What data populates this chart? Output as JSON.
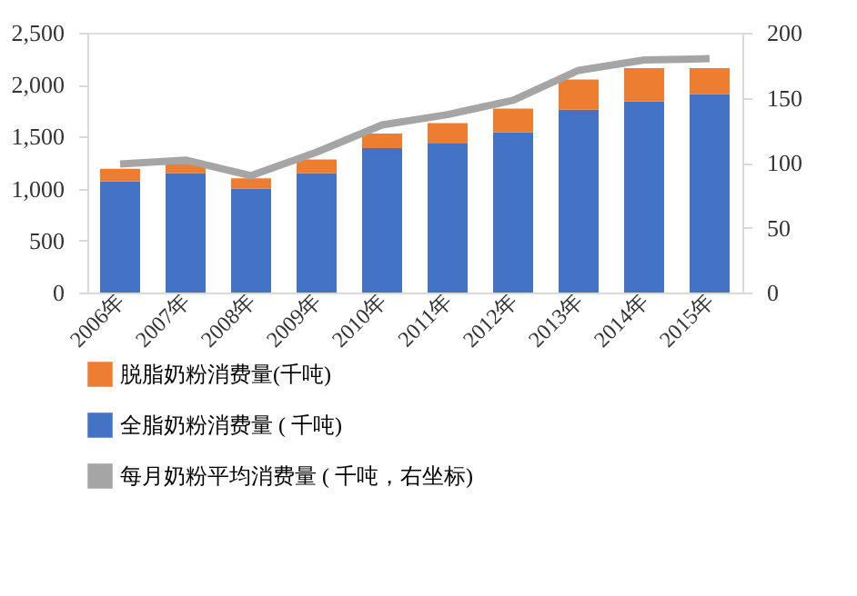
{
  "chart_data": {
    "type": "bar",
    "stacked": true,
    "categories": [
      "2006年",
      "2007年",
      "2008年",
      "2009年",
      "2010年",
      "2011年",
      "2012年",
      "2013年",
      "2014年",
      "2015年"
    ],
    "series": [
      {
        "name": "全脂奶粉消费量 ( 千吨)",
        "color": "#4472c4",
        "values": [
          1070,
          1150,
          1000,
          1150,
          1390,
          1440,
          1540,
          1760,
          1840,
          1910
        ]
      },
      {
        "name": "脱脂奶粉消费量(千吨)",
        "color": "#ed7d31",
        "values": [
          120,
          90,
          100,
          130,
          140,
          190,
          230,
          290,
          320,
          250
        ]
      },
      {
        "name": "每月奶粉平均消费量 ( 千吨，右坐标)",
        "color": "#a5a5a5",
        "type": "line",
        "axis": "y2",
        "values": [
          99,
          102,
          90,
          108,
          129,
          137,
          148,
          171,
          179,
          180
        ]
      }
    ],
    "ylim": [
      0,
      2500
    ],
    "yticks": [
      0,
      500,
      {
        "value": 1000,
        "label": "1,000"
      },
      {
        "value": 1500,
        "label": "1,500"
      },
      {
        "value": 2000,
        "label": "2,000"
      },
      {
        "value": 2500,
        "label": "2,500"
      }
    ],
    "y2lim": [
      0,
      200
    ],
    "y2ticks": [
      0,
      50,
      100,
      150,
      200
    ],
    "grid": false,
    "legend": "bottom"
  }
}
